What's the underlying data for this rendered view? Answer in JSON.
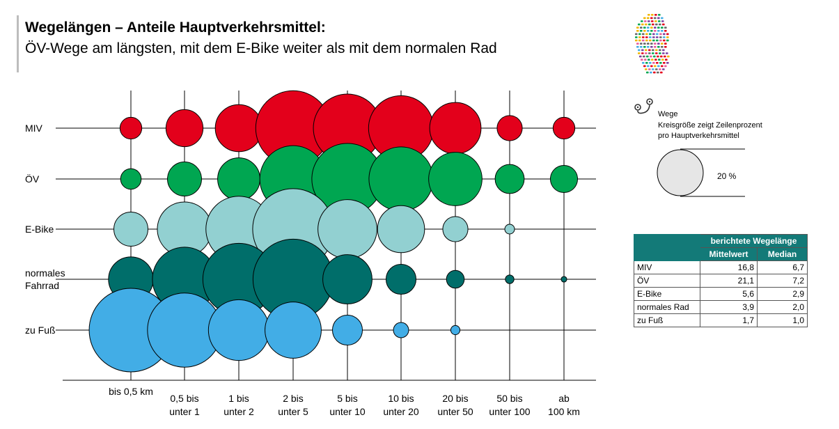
{
  "header": {
    "title": "Wegelängen – Anteile Hauptverkehrsmittel:",
    "subtitle": "ÖV-Wege am längsten, mit dem E-Bike weiter als mit dem normalen Rad"
  },
  "chart_data": {
    "type": "bubble-matrix",
    "categories": [
      [
        "bis 0,5 km"
      ],
      [
        "0,5 bis",
        "unter 1"
      ],
      [
        "1 bis",
        "unter 2"
      ],
      [
        "2 bis",
        "unter 5"
      ],
      [
        "5 bis",
        "unter 10"
      ],
      [
        "10 bis",
        "unter 20"
      ],
      [
        "20 bis",
        "unter 50"
      ],
      [
        "50 bis",
        "unter 100"
      ],
      [
        "ab",
        "100 km"
      ]
    ],
    "series": [
      {
        "name": [
          "MIV"
        ],
        "color": "#e3001b",
        "values": [
          4.5,
          13,
          21,
          53,
          44,
          40,
          25,
          6,
          4.5
        ]
      },
      {
        "name": [
          "ÖV"
        ],
        "color": "#00a651",
        "values": [
          4,
          11,
          17,
          42,
          48,
          39,
          27,
          8,
          7
        ]
      },
      {
        "name": [
          "E-Bike"
        ],
        "color": "#92d0d1",
        "values": [
          11,
          28,
          41,
          62,
          33,
          21,
          6,
          0.9,
          0
        ]
      },
      {
        "name": [
          "normales",
          "Fahrrad"
        ],
        "color": "#006e6a",
        "values": [
          19,
          39,
          49,
          61,
          23,
          8.5,
          3,
          0.7,
          0.3
        ]
      },
      {
        "name": [
          "zu Fuß"
        ],
        "color": "#42ade6",
        "values": [
          66,
          52,
          35,
          30,
          8.5,
          2.2,
          0.8,
          0,
          0
        ]
      }
    ],
    "reference": {
      "value": 20,
      "label": "20 %"
    }
  },
  "legend": {
    "title": "Wege",
    "subtitle_lines": [
      "Kreisgröße zeigt Zeilenprozent",
      "pro Hauptverkehrsmittel"
    ],
    "circle_label": "20 %"
  },
  "table": {
    "header_group": "berichtete Wegelänge",
    "col1": "Mittelwert",
    "col2": "Median",
    "rows": [
      {
        "label": "MIV",
        "mean": "16,8",
        "median": "6,7"
      },
      {
        "label": "ÖV",
        "mean": "21,1",
        "median": "7,2"
      },
      {
        "label": "E-Bike",
        "mean": "5,6",
        "median": "2,9"
      },
      {
        "label": "normales Rad",
        "mean": "3,9",
        "median": "2,0"
      },
      {
        "label": "zu Fuß",
        "mean": "1,7",
        "median": "1,0"
      }
    ]
  },
  "colors": {
    "accent": "#137a78",
    "legend_circle": "#e6e6e6"
  },
  "icons": {
    "route": "route-pin-icon",
    "logo": "germany-map-logo"
  }
}
